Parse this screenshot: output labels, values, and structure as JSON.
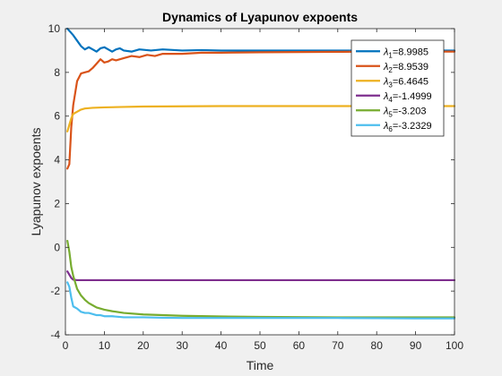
{
  "chart_data": {
    "type": "line",
    "title": "Dynamics of Lyapunov expoents",
    "xlabel": "Time",
    "ylabel": "Lyapunov expoents",
    "xlim": [
      0,
      100
    ],
    "ylim": [
      -4,
      10
    ],
    "xticks": [
      0,
      10,
      20,
      30,
      40,
      50,
      60,
      70,
      80,
      90,
      100
    ],
    "yticks": [
      -4,
      -2,
      0,
      2,
      4,
      6,
      8,
      10
    ],
    "grid": false,
    "legend_position": "top-right",
    "series": [
      {
        "name": "λ1=8.9985",
        "legend_symbol": "λ",
        "legend_sub": "1",
        "legend_value": "=8.9985",
        "color": "#0072BD",
        "points": [
          [
            0.5,
            10.0
          ],
          [
            1,
            9.9
          ],
          [
            2,
            9.7
          ],
          [
            3,
            9.45
          ],
          [
            4,
            9.2
          ],
          [
            5,
            9.05
          ],
          [
            6,
            9.15
          ],
          [
            7,
            9.05
          ],
          [
            8,
            8.95
          ],
          [
            9,
            9.1
          ],
          [
            10,
            9.15
          ],
          [
            11,
            9.05
          ],
          [
            12,
            8.95
          ],
          [
            13,
            9.05
          ],
          [
            14,
            9.1
          ],
          [
            15,
            9.0
          ],
          [
            17,
            8.95
          ],
          [
            19,
            9.05
          ],
          [
            22,
            9.0
          ],
          [
            25,
            9.05
          ],
          [
            30,
            9.0
          ],
          [
            35,
            9.02
          ],
          [
            40,
            9.0
          ],
          [
            50,
            9.0
          ],
          [
            60,
            9.0
          ],
          [
            70,
            9.0
          ],
          [
            80,
            9.0
          ],
          [
            90,
            9.0
          ],
          [
            100,
            9.0
          ]
        ]
      },
      {
        "name": "λ2=8.9539",
        "legend_symbol": "λ",
        "legend_sub": "2",
        "legend_value": "=8.9539",
        "color": "#D95319",
        "points": [
          [
            0.5,
            3.6
          ],
          [
            1,
            3.8
          ],
          [
            1.5,
            5.5
          ],
          [
            2,
            6.5
          ],
          [
            3,
            7.6
          ],
          [
            4,
            7.95
          ],
          [
            5,
            8.0
          ],
          [
            6,
            8.05
          ],
          [
            7,
            8.2
          ],
          [
            8,
            8.4
          ],
          [
            9,
            8.6
          ],
          [
            10,
            8.45
          ],
          [
            11,
            8.5
          ],
          [
            12,
            8.6
          ],
          [
            13,
            8.55
          ],
          [
            15,
            8.65
          ],
          [
            17,
            8.75
          ],
          [
            19,
            8.7
          ],
          [
            21,
            8.8
          ],
          [
            23,
            8.75
          ],
          [
            25,
            8.85
          ],
          [
            28,
            8.85
          ],
          [
            30,
            8.85
          ],
          [
            35,
            8.9
          ],
          [
            40,
            8.9
          ],
          [
            50,
            8.92
          ],
          [
            60,
            8.93
          ],
          [
            70,
            8.94
          ],
          [
            80,
            8.95
          ],
          [
            90,
            8.95
          ],
          [
            100,
            8.95
          ]
        ]
      },
      {
        "name": "λ3=6.4645",
        "legend_symbol": "λ",
        "legend_sub": "3",
        "legend_value": "=6.4645",
        "color": "#EDB120",
        "points": [
          [
            0.5,
            5.3
          ],
          [
            1,
            5.6
          ],
          [
            1.5,
            5.9
          ],
          [
            2,
            6.1
          ],
          [
            3,
            6.2
          ],
          [
            4,
            6.3
          ],
          [
            5,
            6.35
          ],
          [
            7,
            6.38
          ],
          [
            10,
            6.4
          ],
          [
            15,
            6.42
          ],
          [
            20,
            6.44
          ],
          [
            30,
            6.45
          ],
          [
            40,
            6.46
          ],
          [
            50,
            6.46
          ],
          [
            60,
            6.46
          ],
          [
            70,
            6.46
          ],
          [
            80,
            6.46
          ],
          [
            90,
            6.46
          ],
          [
            100,
            6.46
          ]
        ]
      },
      {
        "name": "λ4=-1.4999",
        "legend_symbol": "λ",
        "legend_sub": "4",
        "legend_value": "=-1.4999",
        "color": "#7E2F8E",
        "points": [
          [
            0.5,
            -1.1
          ],
          [
            1,
            -1.25
          ],
          [
            1.5,
            -1.4
          ],
          [
            2,
            -1.48
          ],
          [
            3,
            -1.5
          ],
          [
            10,
            -1.5
          ],
          [
            20,
            -1.5
          ],
          [
            40,
            -1.5
          ],
          [
            60,
            -1.5
          ],
          [
            80,
            -1.5
          ],
          [
            100,
            -1.5
          ]
        ]
      },
      {
        "name": "λ5=-3.203",
        "legend_symbol": "λ",
        "legend_sub": "5",
        "legend_value": "=-3.203",
        "color": "#77AC30",
        "points": [
          [
            0.5,
            0.3
          ],
          [
            1,
            -0.2
          ],
          [
            1.5,
            -0.9
          ],
          [
            2,
            -1.3
          ],
          [
            3,
            -1.9
          ],
          [
            4,
            -2.2
          ],
          [
            5,
            -2.4
          ],
          [
            6,
            -2.55
          ],
          [
            7,
            -2.65
          ],
          [
            8,
            -2.75
          ],
          [
            10,
            -2.85
          ],
          [
            12,
            -2.92
          ],
          [
            15,
            -3.0
          ],
          [
            20,
            -3.07
          ],
          [
            25,
            -3.1
          ],
          [
            30,
            -3.13
          ],
          [
            40,
            -3.16
          ],
          [
            50,
            -3.18
          ],
          [
            60,
            -3.19
          ],
          [
            70,
            -3.2
          ],
          [
            80,
            -3.2
          ],
          [
            90,
            -3.2
          ],
          [
            100,
            -3.2
          ]
        ]
      },
      {
        "name": "λ6=-3.2329",
        "legend_symbol": "λ",
        "legend_sub": "6",
        "legend_value": "=-3.2329",
        "color": "#4DBEEE",
        "points": [
          [
            0.5,
            -1.6
          ],
          [
            1,
            -1.8
          ],
          [
            1.5,
            -2.3
          ],
          [
            2,
            -2.7
          ],
          [
            3,
            -2.8
          ],
          [
            4,
            -2.95
          ],
          [
            5,
            -3.0
          ],
          [
            6,
            -3.0
          ],
          [
            7,
            -3.05
          ],
          [
            8,
            -3.1
          ],
          [
            9,
            -3.1
          ],
          [
            10,
            -3.15
          ],
          [
            12,
            -3.15
          ],
          [
            15,
            -3.2
          ],
          [
            20,
            -3.2
          ],
          [
            25,
            -3.22
          ],
          [
            30,
            -3.23
          ],
          [
            40,
            -3.23
          ],
          [
            50,
            -3.23
          ],
          [
            60,
            -3.23
          ],
          [
            70,
            -3.23
          ],
          [
            80,
            -3.24
          ],
          [
            90,
            -3.25
          ],
          [
            100,
            -3.25
          ]
        ]
      }
    ]
  }
}
